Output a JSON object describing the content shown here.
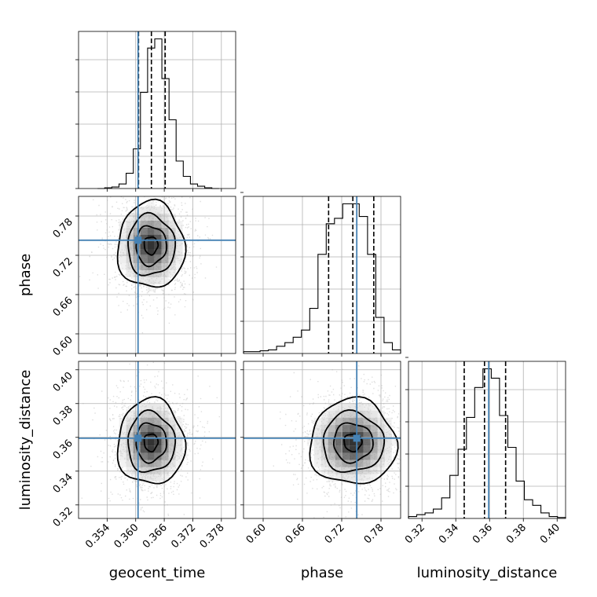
{
  "chart_data": {
    "type": "corner",
    "parameters": [
      "geocent_time",
      "phase",
      "luminosity_distance"
    ],
    "xlabels": [
      "geocent_time",
      "phase",
      "luminosity_distance"
    ],
    "ylabels": [
      "",
      "phase",
      "luminosity_distance"
    ],
    "colors": {
      "hist": "#000000",
      "truth": "#4682b4",
      "grid": "#b0b0b0"
    },
    "ranges": {
      "geocent_time": [
        0.348,
        0.381
      ],
      "phase": [
        0.57,
        0.81
      ],
      "luminosity_distance": [
        0.312,
        0.405
      ]
    },
    "ticks": {
      "geocent_time": [
        "0.354",
        "0.360",
        "0.366",
        "0.372",
        "0.378"
      ],
      "phase": [
        "0.60",
        "0.66",
        "0.72",
        "0.78"
      ],
      "luminosity_distance": [
        "0.32",
        "0.34",
        "0.36",
        "0.38",
        "0.40"
      ]
    },
    "truths": {
      "geocent_time": 0.3605,
      "phase": 0.743,
      "luminosity_distance": 0.3595
    },
    "quantiles": {
      "geocent_time": [
        0.3606,
        0.3633,
        0.3662
      ],
      "phase": [
        0.7,
        0.737,
        0.769
      ],
      "luminosity_distance": [
        0.345,
        0.357,
        0.3695
      ]
    },
    "histograms": {
      "geocent_time": {
        "counts": [
          0,
          0.5,
          1,
          3,
          10,
          26,
          63,
          92,
          98,
          72,
          45,
          18,
          8,
          3,
          1.5,
          0.5,
          0
        ],
        "edges": [
          0.352,
          0.3535,
          0.355,
          0.3565,
          0.358,
          0.3595,
          0.361,
          0.3625,
          0.364,
          0.3655,
          0.367,
          0.3685,
          0.37,
          0.3715,
          0.373,
          0.3745,
          0.376,
          0.3775
        ]
      },
      "phase": {
        "counts": [
          1,
          1,
          1.5,
          2,
          4,
          6,
          9,
          13,
          25,
          55,
          72,
          75,
          83,
          83,
          76,
          55,
          20,
          6,
          2
        ],
        "edges": [
          0.57,
          0.5826,
          0.5953,
          0.6079,
          0.6205,
          0.6332,
          0.6458,
          0.6584,
          0.6711,
          0.6837,
          0.6963,
          0.7089,
          0.7216,
          0.7342,
          0.7468,
          0.7595,
          0.7721,
          0.7847,
          0.7974,
          0.81
        ]
      },
      "luminosity_distance": {
        "counts": [
          1,
          2,
          3,
          5,
          11,
          23,
          37,
          54,
          70,
          80,
          75,
          55,
          38,
          20,
          10,
          7,
          3,
          1,
          0.5
        ],
        "edges": [
          0.312,
          0.3169,
          0.3218,
          0.3267,
          0.3316,
          0.3365,
          0.3414,
          0.3463,
          0.3512,
          0.3561,
          0.361,
          0.3659,
          0.3708,
          0.3757,
          0.3806,
          0.3855,
          0.3904,
          0.3953,
          0.4002,
          0.405
        ]
      }
    },
    "posterior_centers": {
      "geocent_time|phase": [
        0.3632,
        0.735,
        0.0032,
        0.03
      ],
      "geocent_time|luminosity_distance": [
        0.3632,
        0.357,
        0.0032,
        0.0115
      ],
      "phase|luminosity_distance": [
        0.737,
        0.357,
        0.03,
        0.0115
      ]
    }
  }
}
